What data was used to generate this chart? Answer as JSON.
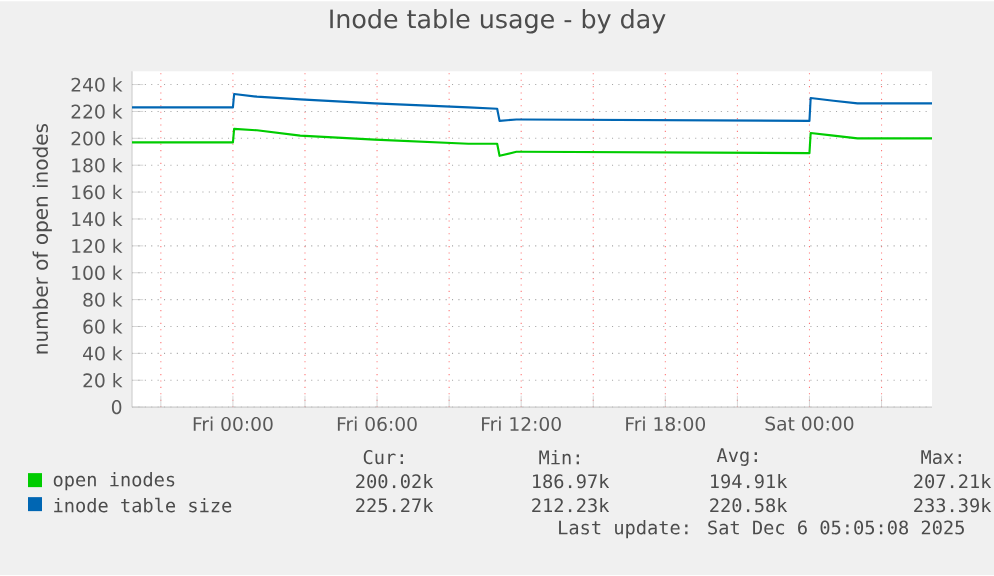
{
  "chart_data": {
    "type": "line",
    "title": "Inode table usage - by day",
    "ylabel": "number of open inodes",
    "x": [
      "2025-12-04T19:48",
      "2025-12-05T00:00",
      "2025-12-05T00:03",
      "2025-12-05T01:00",
      "2025-12-05T02:48",
      "2025-12-05T05:54",
      "2025-12-05T09:48",
      "2025-12-05T11:00",
      "2025-12-05T11:06",
      "2025-12-05T11:48",
      "2025-12-05T12:00",
      "2025-12-06T00:00",
      "2025-12-06T00:03",
      "2025-12-06T01:00",
      "2025-12-06T02:00",
      "2025-12-06T05:06"
    ],
    "series": [
      {
        "name": "open inodes",
        "color": "#00cc00",
        "values": [
          197000,
          197000,
          207000,
          206000,
          202000,
          199000,
          196000,
          196000,
          187000,
          190000,
          190000,
          189000,
          204000,
          202000,
          200000,
          200000
        ]
      },
      {
        "name": "inode table size",
        "color": "#0066b3",
        "values": [
          223000,
          223000,
          233000,
          231000,
          229000,
          226000,
          223000,
          222000,
          213000,
          214000,
          214000,
          213000,
          230000,
          228000,
          226000,
          226000
        ]
      }
    ],
    "xlim": [
      "2025-12-04T19:48",
      "2025-12-06T05:06"
    ],
    "xticks": [
      {
        "value": "2025-12-04T21:00",
        "label": null
      },
      {
        "value": "2025-12-05T00:00",
        "label": "Fri 00:00"
      },
      {
        "value": "2025-12-05T03:00",
        "label": null
      },
      {
        "value": "2025-12-05T06:00",
        "label": "Fri 06:00"
      },
      {
        "value": "2025-12-05T09:00",
        "label": null
      },
      {
        "value": "2025-12-05T12:00",
        "label": "Fri 12:00"
      },
      {
        "value": "2025-12-05T15:00",
        "label": null
      },
      {
        "value": "2025-12-05T18:00",
        "label": "Fri 18:00"
      },
      {
        "value": "2025-12-05T21:00",
        "label": null
      },
      {
        "value": "2025-12-06T00:00",
        "label": "Sat 00:00"
      },
      {
        "value": "2025-12-06T03:00",
        "label": null
      }
    ],
    "ylim": [
      0,
      250000
    ],
    "yticks": [
      0,
      {
        "value": 20000,
        "label": "20 k"
      },
      {
        "value": 40000,
        "label": "40 k"
      },
      {
        "value": 60000,
        "label": "60 k"
      },
      {
        "value": 80000,
        "label": "80 k"
      },
      {
        "value": 100000,
        "label": "100 k"
      },
      {
        "value": 120000,
        "label": "120 k"
      },
      {
        "value": 140000,
        "label": "140 k"
      },
      {
        "value": 160000,
        "label": "160 k"
      },
      {
        "value": 180000,
        "label": "180 k"
      },
      {
        "value": 200000,
        "label": "200 k"
      },
      {
        "value": 220000,
        "label": "220 k"
      },
      {
        "value": 240000,
        "label": "240 k"
      }
    ],
    "grid": true,
    "legend": "bottom",
    "annotations": [
      "Cur:",
      "Min:",
      "Avg:",
      "Max:",
      "200.02k",
      "186.97k",
      "194.91k",
      "207.21k",
      "225.27k",
      "212.23k",
      "220.58k",
      "233.39k",
      "Last update: Sat Dec  6 05:05:08 2025"
    ]
  }
}
